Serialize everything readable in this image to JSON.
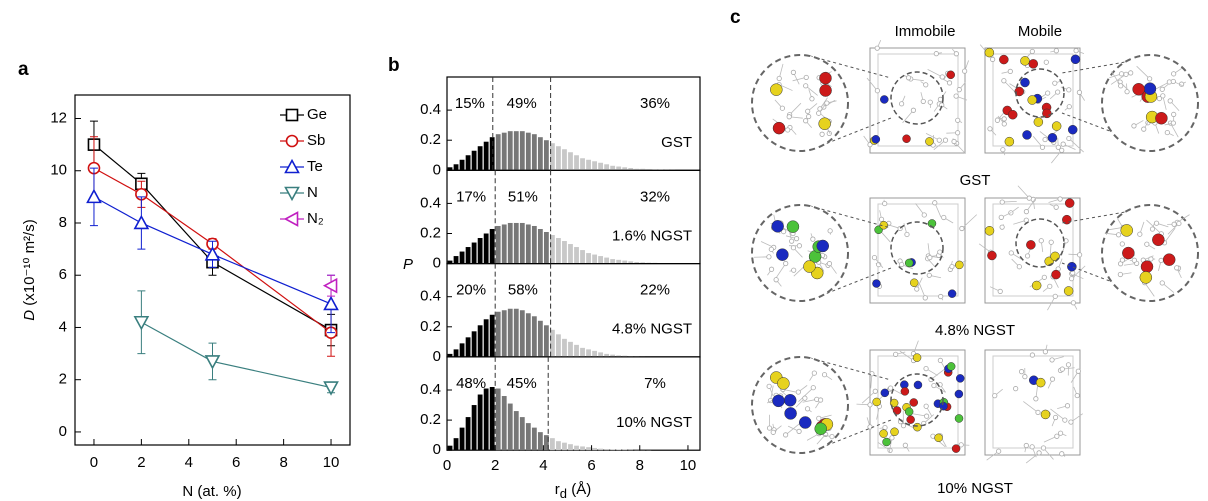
{
  "chart_data": [
    {
      "type": "line",
      "panel": "a",
      "xlabel": "N (at. %)",
      "ylabel": {
        "symbol": "D",
        "unit": " (x10⁻¹⁰ m²/s)"
      },
      "xlim": [
        -0.8,
        10.8
      ],
      "ylim": [
        -0.5,
        12.9
      ],
      "xticks": [
        0,
        2,
        4,
        6,
        8,
        10
      ],
      "yticks": [
        0,
        2,
        4,
        6,
        8,
        10,
        12
      ],
      "legend": "upper right",
      "series": [
        {
          "name": "Ge",
          "color": "#000000",
          "marker": "square",
          "x": [
            0,
            2,
            5,
            10
          ],
          "values": [
            11.0,
            9.5,
            6.5,
            3.9
          ],
          "errors": [
            0.9,
            0.4,
            0.5,
            0.6
          ]
        },
        {
          "name": "Sb",
          "color": "#d01010",
          "marker": "circle",
          "x": [
            0,
            2,
            5,
            10
          ],
          "values": [
            10.1,
            9.1,
            7.2,
            3.8
          ],
          "errors": [
            1.2,
            0.5,
            0.2,
            0.9
          ]
        },
        {
          "name": "Te",
          "color": "#1020d0",
          "marker": "triangle-up",
          "x": [
            0,
            2,
            5,
            10
          ],
          "values": [
            9.0,
            8.0,
            6.8,
            4.9
          ],
          "errors": [
            1.1,
            1.0,
            0.5,
            1.1
          ]
        },
        {
          "name": "N",
          "color": "#3a7f7f",
          "marker": "triangle-down",
          "x": [
            2,
            5,
            10
          ],
          "values": [
            4.2,
            2.7,
            1.7
          ],
          "errors": [
            1.2,
            0.7,
            0.2
          ]
        },
        {
          "name": "N₂",
          "color": "#c020c0",
          "marker": "triangle-left",
          "x": [
            10
          ],
          "values": [
            5.6
          ],
          "errors": [
            0.4
          ]
        }
      ]
    },
    {
      "type": "histogram",
      "panel": "b",
      "xlabel": {
        "symbol": "r",
        "subscript": "d",
        "unit": " (Å)"
      },
      "ylabel": "P",
      "xlim": [
        0,
        10.5
      ],
      "ylim": [
        0,
        0.62
      ],
      "xticks": [
        0,
        2,
        4,
        6,
        8,
        10
      ],
      "yticks": [
        0,
        0.2,
        0.4
      ],
      "colors": [
        "#000000",
        "#777777",
        "#c8c8c8"
      ],
      "bins": [
        0,
        0.25,
        0.5,
        0.75,
        1,
        1.25,
        1.5,
        1.75,
        2,
        2.25,
        2.5,
        2.75,
        3,
        3.25,
        3.5,
        3.75,
        4,
        4.25,
        4.5,
        4.75,
        5,
        5.25,
        5.5,
        5.75,
        6,
        6.25,
        6.5,
        6.75,
        7,
        7.25,
        7.5,
        7.75,
        8,
        8.25,
        8.5,
        8.75,
        9,
        9.25,
        9.5,
        9.75,
        10
      ],
      "series": [
        {
          "name": "GST",
          "thresholds": [
            1.9,
            4.3
          ],
          "fractions": {
            "values": [
              15,
              49,
              36
            ],
            "value_labels": [
              "15%",
              "49%",
              "36%"
            ]
          },
          "values": [
            0.02,
            0.04,
            0.07,
            0.1,
            0.13,
            0.16,
            0.19,
            0.22,
            0.24,
            0.25,
            0.26,
            0.26,
            0.26,
            0.25,
            0.24,
            0.22,
            0.2,
            0.18,
            0.16,
            0.14,
            0.12,
            0.1,
            0.08,
            0.07,
            0.06,
            0.05,
            0.04,
            0.03,
            0.025,
            0.02,
            0.015,
            0.01,
            0.01,
            0.008,
            0.006,
            0.005,
            0.004,
            0.003,
            0.002,
            0.001
          ]
        },
        {
          "name": "1.6% NGST",
          "thresholds": [
            2,
            4.3
          ],
          "fractions": {
            "values": [
              17,
              51,
              32
            ],
            "value_labels": [
              "17%",
              "51%",
              "32%"
            ]
          },
          "values": [
            0.02,
            0.05,
            0.08,
            0.11,
            0.14,
            0.17,
            0.2,
            0.23,
            0.25,
            0.26,
            0.27,
            0.27,
            0.27,
            0.26,
            0.25,
            0.23,
            0.21,
            0.19,
            0.17,
            0.15,
            0.13,
            0.11,
            0.09,
            0.07,
            0.06,
            0.05,
            0.04,
            0.03,
            0.025,
            0.02,
            0.015,
            0.01,
            0.008,
            0.006,
            0.005,
            0.004,
            0.003,
            0.002,
            0.001,
            0.001
          ]
        },
        {
          "name": "4.8% NGST",
          "thresholds": [
            2,
            4.3
          ],
          "fractions": {
            "values": [
              20,
              58,
              22
            ],
            "value_labels": [
              "20%",
              "58%",
              "22%"
            ]
          },
          "values": [
            0.02,
            0.05,
            0.09,
            0.13,
            0.17,
            0.21,
            0.25,
            0.28,
            0.3,
            0.31,
            0.32,
            0.32,
            0.31,
            0.29,
            0.27,
            0.24,
            0.21,
            0.18,
            0.15,
            0.12,
            0.1,
            0.08,
            0.06,
            0.05,
            0.04,
            0.03,
            0.02,
            0.015,
            0.01,
            0.008,
            0.006,
            0.005,
            0.004,
            0.003,
            0.002,
            0.001,
            0.001,
            0.001,
            0,
            0
          ]
        },
        {
          "name": "10% NGST",
          "thresholds": [
            2,
            4.2
          ],
          "fractions": {
            "values": [
              48,
              45,
              7
            ],
            "value_labels": [
              "48%",
              "45%",
              "7%"
            ]
          },
          "values": [
            0.03,
            0.08,
            0.15,
            0.22,
            0.3,
            0.37,
            0.41,
            0.42,
            0.41,
            0.36,
            0.31,
            0.26,
            0.22,
            0.18,
            0.15,
            0.12,
            0.1,
            0.08,
            0.06,
            0.05,
            0.04,
            0.03,
            0.025,
            0.02,
            0.015,
            0.01,
            0.008,
            0.006,
            0.005,
            0.004,
            0.003,
            0.002,
            0.001,
            0.001,
            0,
            0,
            0,
            0,
            0,
            0
          ]
        }
      ]
    }
  ],
  "panel_c": {
    "panel": "c",
    "columns": [
      "Immobile",
      "Mobile"
    ],
    "rows": [
      "GST",
      "4.8% NGST",
      "10% NGST"
    ]
  }
}
